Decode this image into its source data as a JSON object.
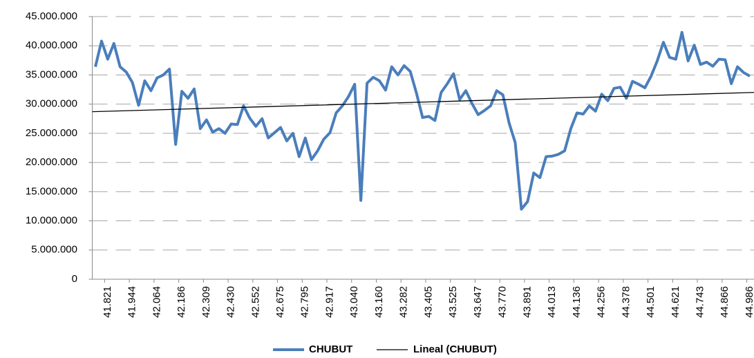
{
  "chart_data": {
    "type": "line",
    "categories": [
      null,
      null,
      "41.821",
      null,
      null,
      null,
      "41.944",
      null,
      null,
      null,
      "42.064",
      null,
      null,
      null,
      "42.186",
      null,
      null,
      null,
      "42.309",
      null,
      null,
      null,
      "42.430",
      null,
      null,
      null,
      "42.552",
      null,
      null,
      null,
      "42.675",
      null,
      null,
      null,
      "42.795",
      null,
      null,
      null,
      "42.917",
      null,
      null,
      null,
      "43.040",
      null,
      null,
      null,
      "43.160",
      null,
      null,
      null,
      "43.282",
      null,
      null,
      null,
      "43.405",
      null,
      null,
      null,
      "43.525",
      null,
      null,
      null,
      "43.647",
      null,
      null,
      null,
      "43.770",
      null,
      null,
      null,
      "43.891",
      null,
      null,
      null,
      "44.013",
      null,
      null,
      null,
      "44.136",
      null,
      null,
      null,
      "44.256",
      null,
      null,
      null,
      "44.378",
      null,
      null,
      null,
      "44.501",
      null,
      null,
      null,
      "44.621",
      null,
      null,
      null,
      "44.743",
      null,
      null,
      null,
      "44.866",
      null,
      null,
      null,
      "44.986"
    ],
    "series": [
      {
        "name": "CHUBUT",
        "color": "#4a7ebb",
        "values": [
          36400000,
          40800000,
          37700000,
          40400000,
          36400000,
          35500000,
          33700000,
          29800000,
          34000000,
          32300000,
          34500000,
          35000000,
          36000000,
          23100000,
          32200000,
          31000000,
          32600000,
          25800000,
          27300000,
          25200000,
          25800000,
          25000000,
          26600000,
          26500000,
          29700000,
          27600000,
          26200000,
          27500000,
          24200000,
          25100000,
          26000000,
          23700000,
          25000000,
          21000000,
          24200000,
          20500000,
          22000000,
          24000000,
          25100000,
          28500000,
          29700000,
          31300000,
          33400000,
          13500000,
          33600000,
          34600000,
          34000000,
          32400000,
          36400000,
          35000000,
          36600000,
          35600000,
          31900000,
          27700000,
          27900000,
          27200000,
          32000000,
          33500000,
          35200000,
          30800000,
          32300000,
          30100000,
          28200000,
          28900000,
          29700000,
          32300000,
          31600000,
          26800000,
          23400000,
          12000000,
          13300000,
          18200000,
          17400000,
          21000000,
          21100000,
          21400000,
          22000000,
          25800000,
          28500000,
          28300000,
          29700000,
          28800000,
          31700000,
          30600000,
          32700000,
          32900000,
          31000000,
          33900000,
          33400000,
          32800000,
          34800000,
          37400000,
          40600000,
          38000000,
          37700000,
          42300000,
          37400000,
          40100000,
          36800000,
          37200000,
          36500000,
          37700000,
          37600000,
          33500000,
          36400000,
          35400000,
          34800000
        ]
      }
    ],
    "trendline": {
      "name": "Lineal (CHUBUT)",
      "color": "#000000",
      "values": [
        28700000,
        32000000
      ]
    },
    "ylim": [
      0,
      45000000
    ],
    "yticks": [
      0,
      {
        "value": 5000000,
        "label": "5.000.000"
      },
      {
        "value": 10000000,
        "label": "10.000.000"
      },
      {
        "value": 15000000,
        "label": "15.000.000"
      },
      {
        "value": 20000000,
        "label": "20.000.000"
      },
      {
        "value": 25000000,
        "label": "25.000.000"
      },
      {
        "value": 30000000,
        "label": "30.000.000"
      },
      {
        "value": 35000000,
        "label": "35.000.000"
      },
      {
        "value": 40000000,
        "label": "40.000.000"
      },
      {
        "value": 45000000,
        "label": "45.000.000"
      }
    ],
    "grid": true,
    "legend": "bottom"
  }
}
